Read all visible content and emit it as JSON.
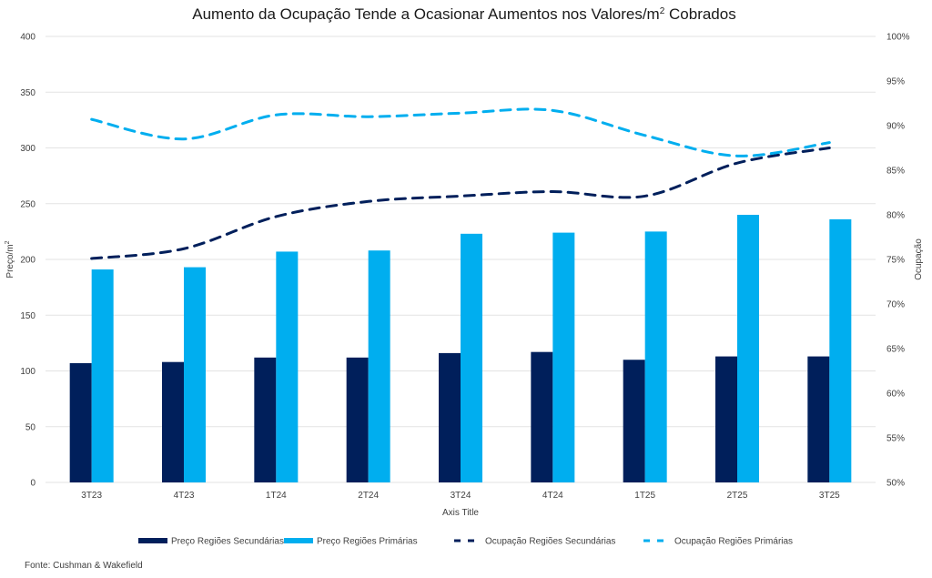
{
  "chart_data": {
    "type": "bar",
    "title": "Aumento da Ocupação Tende a Ocasionar Aumentos nos Valores/m² Cobrados",
    "title_main": "Aumento da Ocupação Tende a Ocasionar Aumentos nos Valores/m",
    "title_sup": "2",
    "title_end": " Cobrados",
    "xlabel": "Axis Title",
    "ylabel": "Preço/m²",
    "ylabel_main": "Preço/m",
    "ylabel_sup": "2",
    "y2label": "Ocupação",
    "categories": [
      "3T23",
      "4T23",
      "1T24",
      "2T24",
      "3T24",
      "4T24",
      "1T25",
      "2T25",
      "3T25"
    ],
    "ylim": [
      0,
      400
    ],
    "yticks": [
      0,
      50,
      100,
      150,
      200,
      250,
      300,
      350,
      400
    ],
    "y2lim": [
      50,
      100
    ],
    "y2ticks": [
      50,
      55,
      60,
      65,
      70,
      75,
      80,
      85,
      90,
      95,
      100
    ],
    "y2tick_suffix": "%",
    "grid": true,
    "legend_position": "bottom",
    "series": [
      {
        "name": "Preço Regiões Secundárias",
        "type": "bar",
        "axis": "left",
        "color": "#001F5B",
        "values": [
          107,
          108,
          112,
          112,
          116,
          117,
          110,
          113,
          113
        ]
      },
      {
        "name": "Preço Regiões Primárias",
        "type": "bar",
        "axis": "left",
        "color": "#00AEEF",
        "values": [
          191,
          193,
          207,
          208,
          223,
          224,
          225,
          240,
          236
        ]
      },
      {
        "name": "Ocupação Regiões Secundárias",
        "type": "line",
        "style": "dashed",
        "axis": "right",
        "color": "#001F5B",
        "values": [
          75.1,
          76.2,
          79.8,
          81.5,
          82.1,
          82.6,
          82.1,
          85.8,
          87.5
        ]
      },
      {
        "name": "Ocupação Regiões Primárias",
        "type": "line",
        "style": "dashed",
        "axis": "right",
        "color": "#00AEEF",
        "values": [
          90.7,
          88.5,
          91.2,
          91.0,
          91.4,
          91.7,
          88.9,
          86.6,
          88.1
        ]
      }
    ],
    "source": "Fonte: Cushman & Wakefield"
  }
}
